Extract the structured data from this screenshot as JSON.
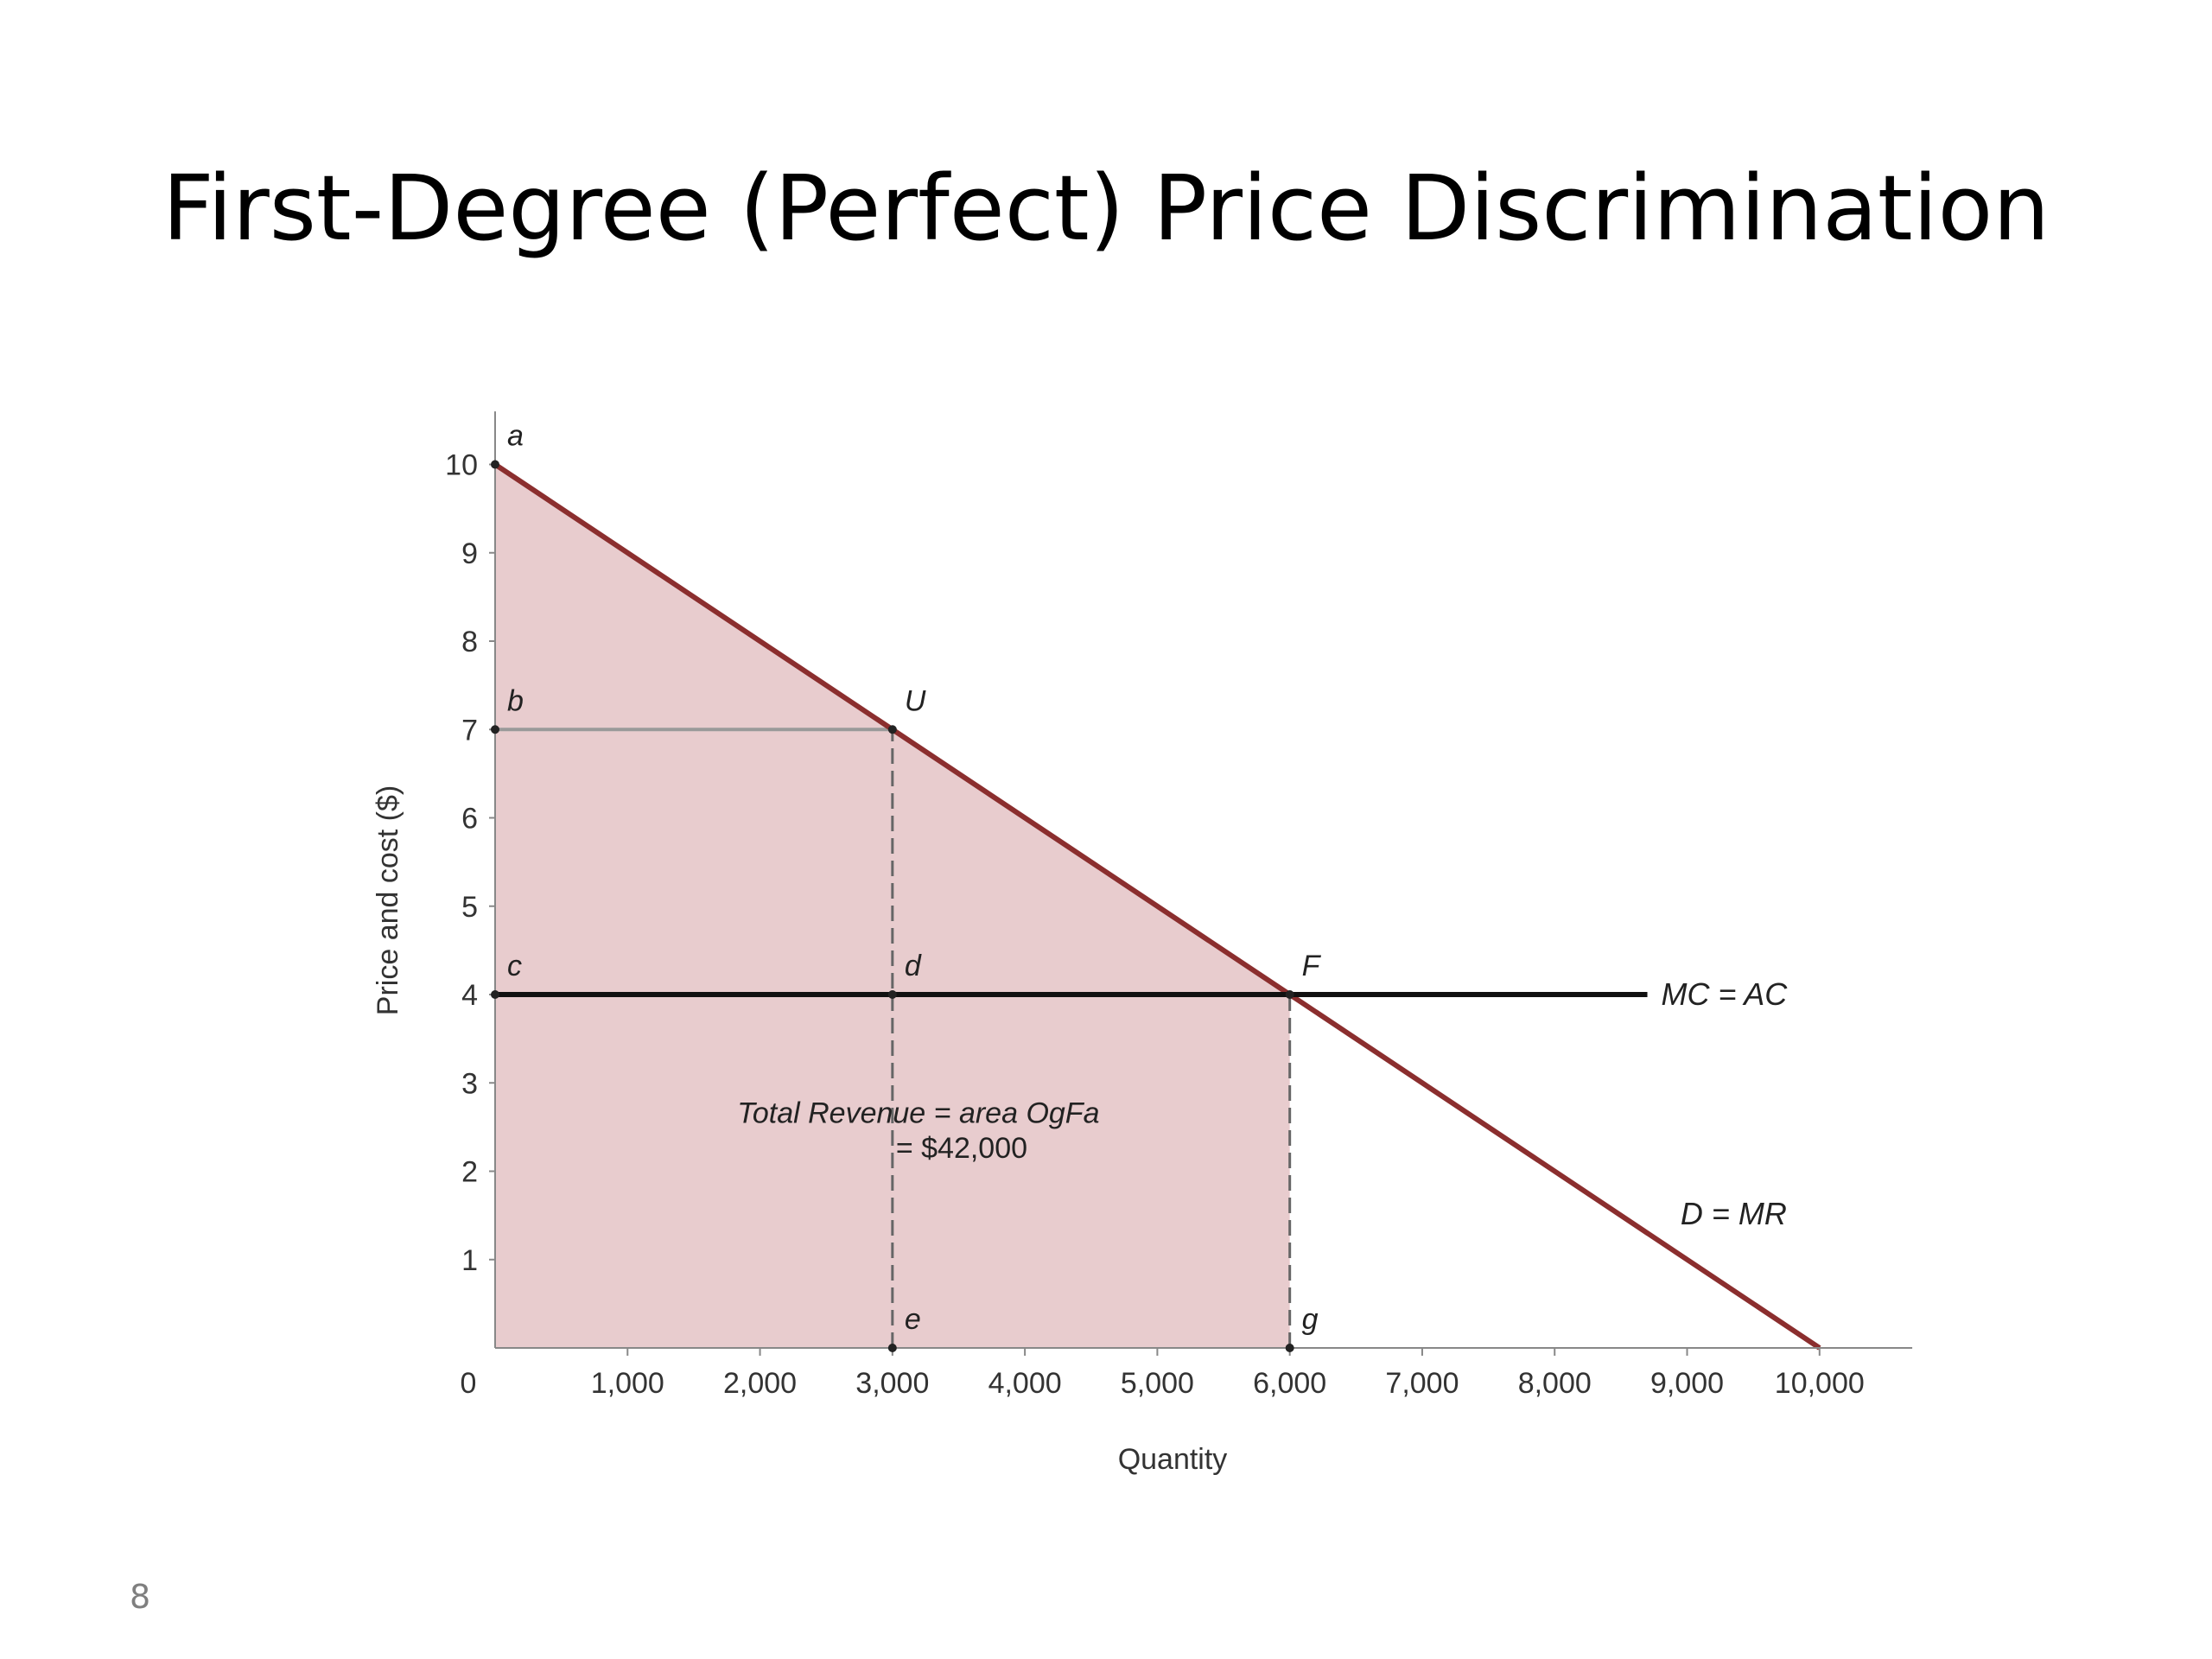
{
  "slide": {
    "title": "First-Degree (Perfect) Price Discrimination",
    "page_number": "8"
  },
  "chart_data": {
    "type": "line",
    "xlabel": "Quantity",
    "ylabel": "Price and cost ($)",
    "xlim": [
      0,
      10700
    ],
    "ylim": [
      0,
      10.6
    ],
    "x_ticks": [
      {
        "value": 1000,
        "label": "1,000"
      },
      {
        "value": 2000,
        "label": "2,000"
      },
      {
        "value": 3000,
        "label": "3,000"
      },
      {
        "value": 4000,
        "label": "4,000"
      },
      {
        "value": 5000,
        "label": "5,000"
      },
      {
        "value": 6000,
        "label": "6,000"
      },
      {
        "value": 7000,
        "label": "7,000"
      },
      {
        "value": 8000,
        "label": "8,000"
      },
      {
        "value": 9000,
        "label": "9,000"
      },
      {
        "value": 10000,
        "label": "10,000"
      }
    ],
    "y_ticks": [
      {
        "value": 1,
        "label": "1"
      },
      {
        "value": 2,
        "label": "2"
      },
      {
        "value": 3,
        "label": "3"
      },
      {
        "value": 4,
        "label": "4"
      },
      {
        "value": 5,
        "label": "5"
      },
      {
        "value": 6,
        "label": "6"
      },
      {
        "value": 7,
        "label": "7"
      },
      {
        "value": 8,
        "label": "8"
      },
      {
        "value": 9,
        "label": "9"
      },
      {
        "value": 10,
        "label": "10"
      }
    ],
    "origin_label": "0",
    "series": [
      {
        "name": "D = MR",
        "color": "#8b2e2e",
        "points": [
          [
            0,
            10
          ],
          [
            10000,
            0
          ]
        ]
      },
      {
        "name": "MC = AC",
        "color": "#111111",
        "points": [
          [
            0,
            4
          ],
          [
            8700,
            4
          ]
        ]
      }
    ],
    "shaded_area": {
      "color": "#e8ccce",
      "polygon": [
        [
          0,
          0
        ],
        [
          0,
          10
        ],
        [
          6000,
          4
        ],
        [
          6000,
          0
        ]
      ]
    },
    "guide_lines": [
      {
        "style": "solid",
        "color": "#999999",
        "points": [
          [
            0,
            7
          ],
          [
            3000,
            7
          ]
        ]
      },
      {
        "style": "dashed",
        "color": "#666666",
        "points": [
          [
            3000,
            0
          ],
          [
            3000,
            7
          ]
        ]
      },
      {
        "style": "dashed",
        "color": "#666666",
        "points": [
          [
            6000,
            0
          ],
          [
            6000,
            4
          ]
        ]
      }
    ],
    "points": [
      {
        "label": "a",
        "x": 0,
        "y": 10
      },
      {
        "label": "b",
        "x": 0,
        "y": 7
      },
      {
        "label": "U",
        "x": 3000,
        "y": 7
      },
      {
        "label": "c",
        "x": 0,
        "y": 4
      },
      {
        "label": "d",
        "x": 3000,
        "y": 4
      },
      {
        "label": "F",
        "x": 6000,
        "y": 4
      },
      {
        "label": "e",
        "x": 3000,
        "y": 0
      },
      {
        "label": "g",
        "x": 6000,
        "y": 0
      }
    ],
    "annotations": [
      {
        "text": "Total Revenue = area OgFa",
        "x": 3000,
        "y": 2.55
      },
      {
        "text": "= $42,000",
        "x": 3000,
        "y": 2.15
      }
    ]
  }
}
